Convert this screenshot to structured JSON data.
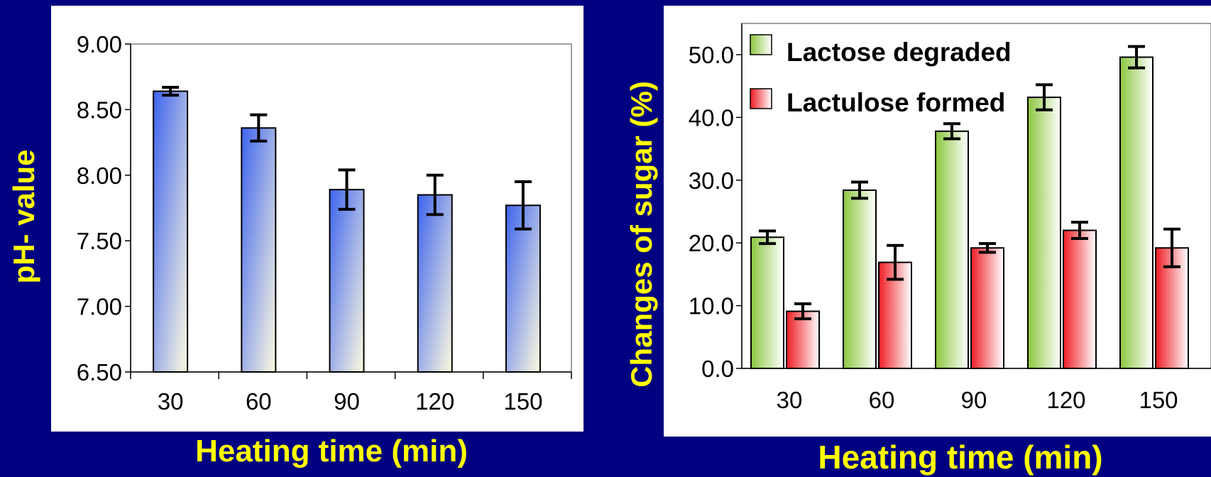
{
  "colors": {
    "background": "#000080",
    "panel": "#ffffff",
    "label_yellow": "#ffff00",
    "ph_bar_top": "#3d63ee",
    "ph_bar_bottom": "#fffbe0",
    "lactose_top": "#8cc63f",
    "lactose_bottom": "#ffffff",
    "lactulose_top": "#ee1c24",
    "lactulose_bottom": "#ffffff"
  },
  "chart_data": [
    {
      "type": "bar",
      "title": "",
      "xlabel": "Heating time (min)",
      "ylabel": "pH- value",
      "categories": [
        "30",
        "60",
        "90",
        "120",
        "150"
      ],
      "series": [
        {
          "values": [
            8.64,
            8.36,
            7.89,
            7.85,
            7.77
          ],
          "errors": [
            0.03,
            0.1,
            0.15,
            0.15,
            0.18
          ]
        }
      ],
      "ylim": [
        6.5,
        9.0
      ],
      "yticks": [
        "6.50",
        "7.00",
        "7.50",
        "8.00",
        "8.50",
        "9.00"
      ],
      "grid": false,
      "legend": "none"
    },
    {
      "type": "bar",
      "title": "",
      "xlabel": "Heating time (min)",
      "ylabel": "Changes of sugar (%)",
      "categories": [
        "30",
        "60",
        "90",
        "120",
        "150"
      ],
      "series": [
        {
          "name": "Lactose degraded",
          "values": [
            20.9,
            28.4,
            37.8,
            43.2,
            49.6
          ],
          "errors": [
            1.0,
            1.3,
            1.2,
            2.0,
            1.7
          ]
        },
        {
          "name": "Lactulose formed",
          "values": [
            9.1,
            16.9,
            19.2,
            22.0,
            19.2
          ],
          "errors": [
            1.2,
            2.7,
            0.7,
            1.3,
            3.0
          ]
        }
      ],
      "ylim": [
        0,
        50
      ],
      "yticks": [
        "0.0",
        "10.0",
        "20.0",
        "30.0",
        "40.0",
        "50.0"
      ],
      "grid": false,
      "legend": "top-left"
    }
  ]
}
